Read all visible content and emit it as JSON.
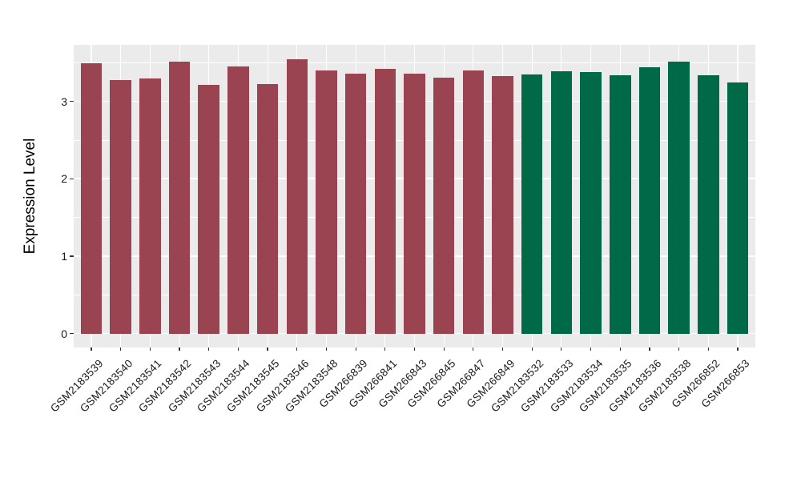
{
  "chart_data": {
    "type": "bar",
    "title": "",
    "xlabel": "",
    "ylabel": "Expression Level",
    "categories": [
      "GSM2183539",
      "GSM2183540",
      "GSM2183541",
      "GSM2183542",
      "GSM2183543",
      "GSM2183544",
      "GSM2183545",
      "GSM2183546",
      "GSM2183548",
      "GSM266839",
      "GSM266841",
      "GSM266843",
      "GSM266845",
      "GSM266847",
      "GSM266849",
      "GSM2183532",
      "GSM2183533",
      "GSM2183534",
      "GSM2183535",
      "GSM2183536",
      "GSM2183538",
      "GSM266852",
      "GSM266853"
    ],
    "values": [
      3.49,
      3.28,
      3.3,
      3.51,
      3.21,
      3.45,
      3.22,
      3.54,
      3.4,
      3.36,
      3.42,
      3.36,
      3.31,
      3.4,
      3.33,
      3.35,
      3.39,
      3.38,
      3.34,
      3.44,
      3.51,
      3.34,
      3.24
    ],
    "groups": [
      "g1",
      "g1",
      "g1",
      "g1",
      "g1",
      "g1",
      "g1",
      "g1",
      "g1",
      "g1",
      "g1",
      "g1",
      "g1",
      "g1",
      "g1",
      "g2",
      "g2",
      "g2",
      "g2",
      "g2",
      "g2",
      "g2",
      "g2"
    ],
    "group_colors": {
      "g1": "#9B4451",
      "g2": "#006A48"
    },
    "ylim": [
      -0.18,
      3.73
    ],
    "yticks": [
      0,
      1,
      2,
      3
    ],
    "yticks_minor": [
      0.5,
      1.5,
      2.5,
      3.5
    ],
    "grid": true,
    "legend_position": "none",
    "style": {
      "panel_background": "#EBEBEB",
      "grid_color": "#FFFFFF",
      "axis_text_color": "#1A1A1A",
      "tick_color": "#333333",
      "figure_background": "#FFFFFF"
    }
  }
}
